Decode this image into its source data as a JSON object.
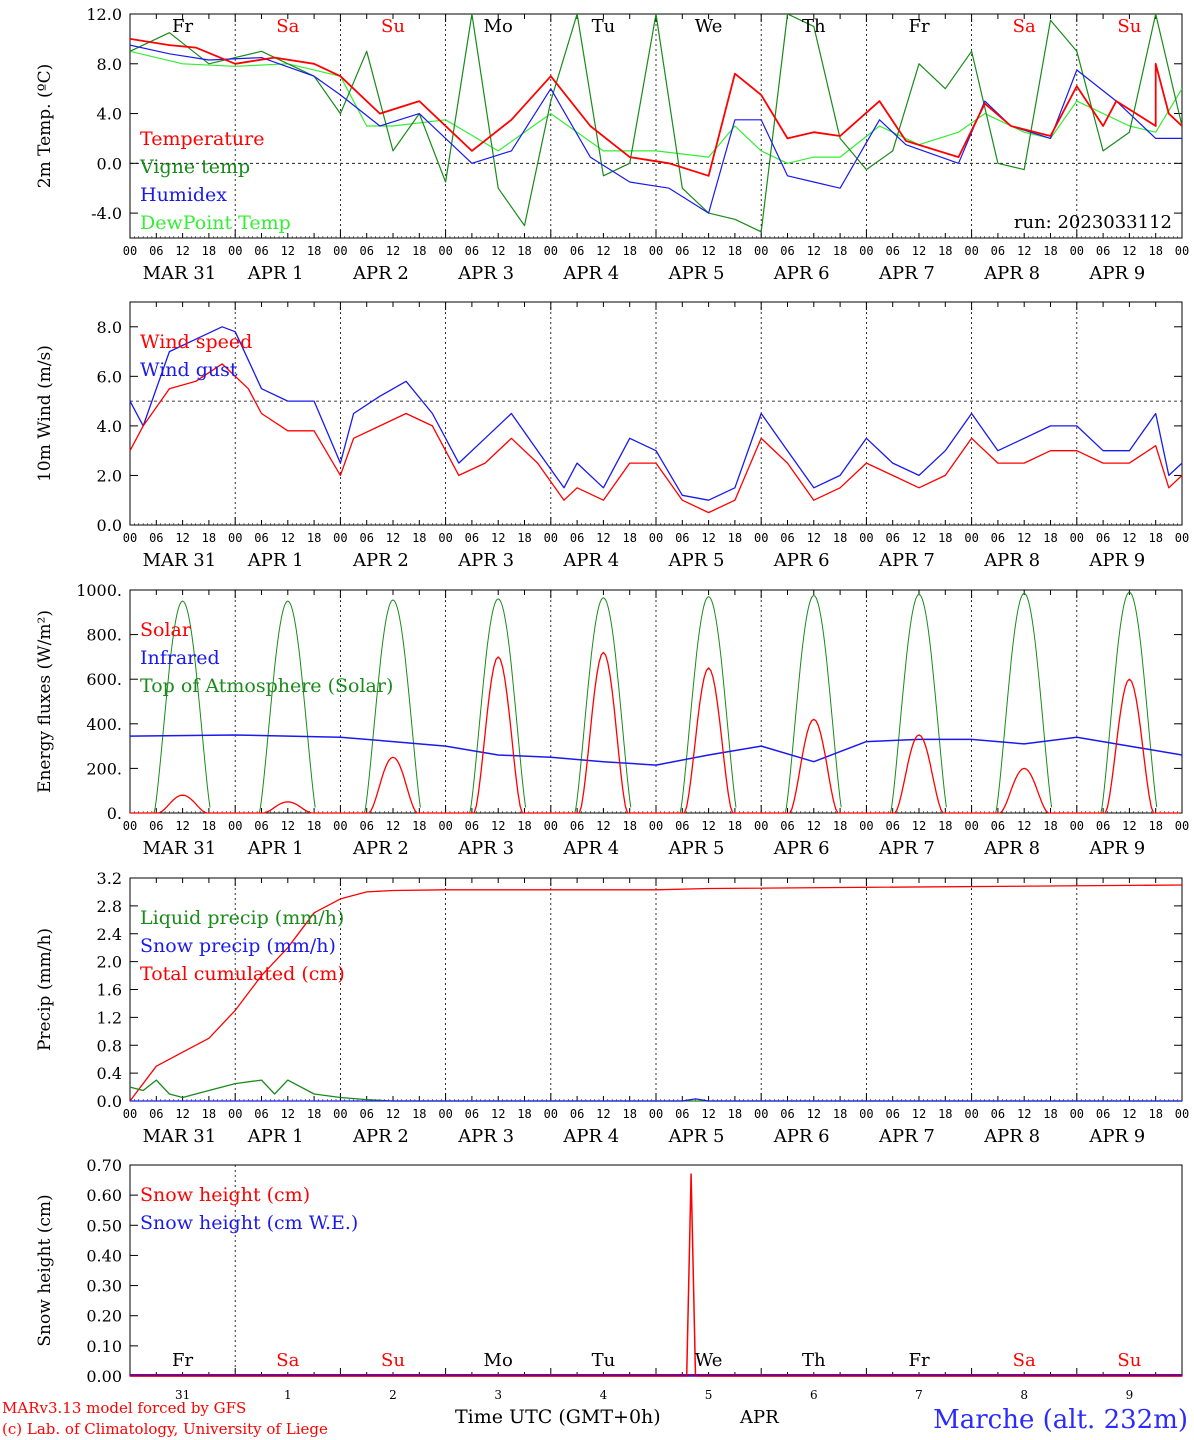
{
  "colors": {
    "red": "#ff0000",
    "darkgreen": "#1a8a1a",
    "blue": "#1a1aee",
    "lightgreen": "#33ee33",
    "weekday": "#000000",
    "weekend": "#ff0000",
    "location": "#2b2bff",
    "purple": "#800080"
  },
  "day_names": [
    {
      "name": "Fr",
      "weekend": false
    },
    {
      "name": "Sa",
      "weekend": true
    },
    {
      "name": "Su",
      "weekend": true
    },
    {
      "name": "Mo",
      "weekend": false
    },
    {
      "name": "Tu",
      "weekend": false
    },
    {
      "name": "We",
      "weekend": false
    },
    {
      "name": "Th",
      "weekend": false
    },
    {
      "name": "Fr",
      "weekend": false
    },
    {
      "name": "Sa",
      "weekend": true
    },
    {
      "name": "Su",
      "weekend": true
    }
  ],
  "date_labels": [
    "MAR 31",
    "APR  1",
    "APR  2",
    "APR  3",
    "APR  4",
    "APR  5",
    "APR  6",
    "APR  7",
    "APR  8",
    "APR  9"
  ],
  "hour_labels": [
    "00",
    "06",
    "12",
    "18"
  ],
  "hour_label_end": "00",
  "bottom_day_numbers": [
    "31",
    "1",
    "2",
    "3",
    "4",
    "5",
    "6",
    "7",
    "8",
    "9"
  ],
  "footer": {
    "model": "MARv3.13 model forced by GFS",
    "lab": "(c) Lab. of Climatology, University of Liege",
    "time_axis": "Time UTC (GMT+0h)",
    "month": "APR",
    "location": "Marche (alt. 232m)"
  },
  "chart_data": [
    {
      "type": "line",
      "ylabel": "2m Temp. (ºC)",
      "ylim": [
        -6,
        12
      ],
      "y_ticks": [
        "12.0",
        "8.0",
        "4.0",
        "0.0",
        "-4.0"
      ],
      "ref_line": 0,
      "run_label": "run: 2023033112",
      "x_unit": "hours since 2023-03-31 00 UTC",
      "legend": [
        "Temperature",
        "Vigne temp",
        "Humidex",
        "DewPoint Temp"
      ],
      "series": [
        {
          "name": "Temperature",
          "color": "red",
          "x": [
            0,
            9,
            15,
            24,
            33,
            42,
            48,
            57,
            66,
            78,
            87,
            96,
            105,
            114,
            123,
            132,
            138,
            144,
            150,
            156,
            162,
            171,
            177,
            189,
            195,
            201,
            210,
            216,
            225,
            234,
            240,
            240,
            222,
            234,
            237
          ],
          "y": [
            10.0,
            9.5,
            9.3,
            8.0,
            8.5,
            8.0,
            7.0,
            4.0,
            5.0,
            1.0,
            3.5,
            7.0,
            3.0,
            0.5,
            0.0,
            -1.0,
            7.2,
            5.5,
            2.0,
            2.5,
            2.2,
            5.0,
            1.8,
            0.5,
            4.8,
            3.0,
            2.2,
            6.2,
            5.0,
            3.0,
            3.0,
            3.0,
            3.0,
            8.0,
            4.0
          ]
        },
        {
          "name": "Vigne temp",
          "color": "darkgreen",
          "x": [
            0,
            9,
            18,
            30,
            42,
            48,
            54,
            60,
            66,
            72,
            78,
            84,
            90,
            96,
            102,
            108,
            114,
            120,
            126,
            132,
            138,
            144,
            150,
            156,
            162,
            168,
            174,
            180,
            186,
            192,
            198,
            204,
            210,
            216,
            222,
            228,
            234,
            240
          ],
          "y": [
            9.0,
            10.5,
            8.0,
            9.0,
            7.0,
            4.0,
            9.0,
            1.0,
            4.0,
            -1.5,
            12.0,
            -2.0,
            -5.0,
            5.0,
            12.0,
            -1.0,
            0.0,
            12.0,
            -2.0,
            -4.0,
            -4.5,
            -5.5,
            12.0,
            11.0,
            2.0,
            -0.5,
            1.0,
            8.0,
            6.0,
            9.0,
            0.0,
            -0.5,
            11.5,
            9.0,
            1.0,
            2.5,
            12.0,
            3.0
          ]
        },
        {
          "name": "Humidex",
          "color": "blue",
          "x": [
            0,
            9,
            18,
            30,
            42,
            48,
            57,
            66,
            78,
            87,
            96,
            105,
            114,
            123,
            132,
            138,
            144,
            150,
            156,
            162,
            171,
            177,
            189,
            195,
            201,
            210,
            216,
            225,
            234,
            240
          ],
          "y": [
            9.5,
            8.8,
            8.3,
            8.5,
            7.0,
            5.5,
            3.0,
            4.0,
            0.0,
            1.0,
            6.0,
            0.5,
            -1.5,
            -2.0,
            -4.0,
            3.5,
            3.5,
            -1.0,
            -1.5,
            -2.0,
            3.5,
            1.5,
            0.0,
            5.0,
            3.0,
            2.0,
            7.5,
            5.0,
            2.0,
            2.0
          ]
        },
        {
          "name": "DewPoint Temp",
          "color": "lightgreen",
          "x": [
            0,
            12,
            24,
            36,
            48,
            54,
            60,
            72,
            84,
            96,
            108,
            120,
            132,
            138,
            144,
            150,
            156,
            162,
            171,
            180,
            189,
            195,
            204,
            210,
            216,
            228,
            234,
            240
          ],
          "y": [
            9.0,
            8.0,
            7.8,
            8.0,
            7.0,
            3.0,
            3.0,
            3.5,
            1.0,
            4.0,
            1.0,
            1.0,
            0.5,
            3.0,
            1.0,
            0.0,
            0.5,
            0.5,
            3.0,
            1.5,
            2.5,
            4.0,
            2.5,
            2.0,
            5.0,
            3.0,
            2.5,
            6.0
          ]
        }
      ]
    },
    {
      "type": "line",
      "ylabel": "10m Wind (m/s)",
      "ylim": [
        0,
        9
      ],
      "y_ticks": [
        "8.0",
        "6.0",
        "4.0",
        "2.0",
        "0.0"
      ],
      "ref_line": 5,
      "legend": [
        "Wind speed",
        "Wind gust"
      ],
      "series": [
        {
          "name": "Wind speed",
          "color": "red",
          "x": [
            0,
            3,
            9,
            15,
            21,
            27,
            30,
            36,
            42,
            48,
            51,
            57,
            63,
            69,
            75,
            81,
            87,
            93,
            99,
            102,
            108,
            114,
            120,
            126,
            132,
            138,
            144,
            150,
            156,
            162,
            168,
            174,
            180,
            186,
            192,
            198,
            204,
            210,
            216,
            222,
            228,
            234,
            237,
            240
          ],
          "y": [
            3.0,
            4.0,
            5.5,
            5.8,
            6.5,
            5.5,
            4.5,
            3.8,
            3.8,
            2.0,
            3.5,
            4.0,
            4.5,
            4.0,
            2.0,
            2.5,
            3.5,
            2.5,
            1.0,
            1.5,
            1.0,
            2.5,
            2.5,
            1.0,
            0.5,
            1.0,
            3.5,
            2.5,
            1.0,
            1.5,
            2.5,
            2.0,
            1.5,
            2.0,
            3.5,
            2.5,
            2.5,
            3.0,
            3.0,
            2.5,
            2.5,
            3.2,
            1.5,
            2.0
          ]
        },
        {
          "name": "Wind gust",
          "color": "blue",
          "x": [
            0,
            3,
            9,
            15,
            21,
            24,
            30,
            36,
            42,
            48,
            51,
            57,
            63,
            69,
            75,
            81,
            87,
            93,
            99,
            102,
            108,
            114,
            120,
            126,
            132,
            138,
            144,
            150,
            156,
            162,
            168,
            174,
            180,
            186,
            192,
            198,
            204,
            210,
            216,
            222,
            228,
            234,
            237,
            240
          ],
          "y": [
            5.0,
            4.0,
            7.0,
            7.5,
            8.0,
            7.8,
            5.5,
            5.0,
            5.0,
            2.5,
            4.5,
            5.2,
            5.8,
            4.5,
            2.5,
            3.5,
            4.5,
            3.0,
            1.5,
            2.5,
            1.5,
            3.5,
            3.0,
            1.2,
            1.0,
            1.5,
            4.5,
            3.0,
            1.5,
            2.0,
            3.5,
            2.5,
            2.0,
            3.0,
            4.5,
            3.0,
            3.5,
            4.0,
            4.0,
            3.0,
            3.0,
            4.5,
            2.0,
            2.5
          ]
        }
      ]
    },
    {
      "type": "line",
      "ylabel": "Energy fluxes (W/m²)",
      "ylim": [
        0,
        1000
      ],
      "y_ticks": [
        "1000.",
        "800.",
        "600.",
        "400.",
        "200.",
        "0."
      ],
      "legend": [
        "Solar",
        "Infrared",
        "Top of Atmosphere (Solar)"
      ],
      "toa_peaks": [
        950,
        950,
        955,
        960,
        965,
        970,
        975,
        980,
        985,
        990
      ],
      "solar_peaks": [
        80,
        50,
        250,
        700,
        720,
        650,
        420,
        350,
        200,
        600
      ],
      "infrared": {
        "x": [
          0,
          24,
          48,
          60,
          72,
          84,
          96,
          108,
          120,
          132,
          144,
          156,
          168,
          180,
          192,
          204,
          216,
          228,
          240
        ],
        "y": [
          345,
          350,
          340,
          320,
          300,
          260,
          250,
          230,
          215,
          260,
          300,
          230,
          320,
          330,
          330,
          310,
          340,
          300,
          260
        ]
      }
    },
    {
      "type": "line",
      "ylabel": "Precip (mm/h)",
      "ylim": [
        0,
        3.2
      ],
      "y_ticks": [
        "3.2",
        "2.8",
        "2.4",
        "2.0",
        "1.6",
        "1.2",
        "0.8",
        "0.4",
        "0.0"
      ],
      "legend": [
        "Liquid precip (mm/h)",
        "Snow precip (mm/h)",
        "Total cumulated (cm)"
      ],
      "series": [
        {
          "name": "Total cumulated (cm)",
          "color": "red",
          "x": [
            0,
            6,
            12,
            18,
            24,
            30,
            36,
            42,
            48,
            54,
            60,
            72,
            120,
            132,
            240
          ],
          "y": [
            0.0,
            0.5,
            0.7,
            0.9,
            1.3,
            1.8,
            2.2,
            2.7,
            2.9,
            3.0,
            3.02,
            3.03,
            3.03,
            3.05,
            3.1
          ]
        },
        {
          "name": "Liquid precip (mm/h)",
          "color": "darkgreen",
          "x": [
            0,
            3,
            6,
            9,
            12,
            18,
            24,
            30,
            33,
            36,
            42,
            48,
            54,
            60,
            240
          ],
          "y": [
            0.2,
            0.15,
            0.3,
            0.1,
            0.05,
            0.15,
            0.25,
            0.3,
            0.1,
            0.3,
            0.1,
            0.05,
            0.02,
            0.0,
            0.0
          ]
        },
        {
          "name": "Snow precip (mm/h)",
          "color": "blue",
          "x": [
            0,
            126,
            129,
            132,
            240
          ],
          "y": [
            0.0,
            0.0,
            0.03,
            0.0,
            0.0
          ]
        }
      ]
    },
    {
      "type": "line",
      "ylabel": "Snow height (cm)",
      "ylim": [
        0,
        0.7
      ],
      "y_ticks": [
        "0.70",
        "0.60",
        "0.50",
        "0.40",
        "0.30",
        "0.20",
        "0.10",
        "0.00"
      ],
      "legend": [
        "Snow height (cm)",
        "Snow height (cm W.E.)"
      ],
      "series": [
        {
          "name": "Snow height (cm)",
          "color": "red",
          "x": [
            0,
            127,
            128,
            129,
            240
          ],
          "y": [
            0.0,
            0.0,
            0.67,
            0.0,
            0.0
          ]
        },
        {
          "name": "Snow height (cm W.E.)",
          "color": "blue",
          "x": [
            0,
            240
          ],
          "y": [
            0.0,
            0.0
          ]
        }
      ]
    }
  ]
}
